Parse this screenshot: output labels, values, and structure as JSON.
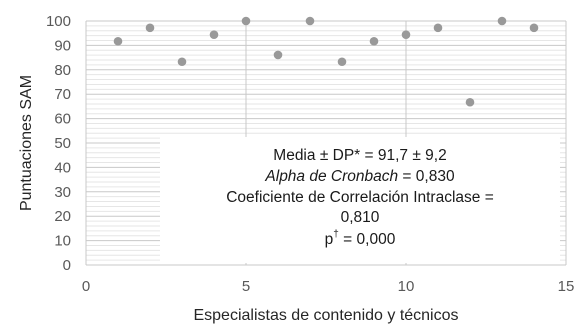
{
  "chart_data": {
    "type": "scatter",
    "xlabel": "Especialistas de contenido y técnicos",
    "ylabel": "Puntuaciones SAM",
    "xlim": [
      0,
      15
    ],
    "ylim": [
      0,
      100
    ],
    "x_ticks": [
      "0",
      "5",
      "10",
      "15"
    ],
    "y_ticks": [
      "0",
      "10",
      "20",
      "30",
      "40",
      "50",
      "60",
      "70",
      "80",
      "90",
      "100"
    ],
    "grid": "on",
    "series": [
      {
        "color": "#999999",
        "points": [
          {
            "x": 1,
            "y": 91.7
          },
          {
            "x": 2,
            "y": 97.2
          },
          {
            "x": 3,
            "y": 83.3
          },
          {
            "x": 4,
            "y": 94.4
          },
          {
            "x": 5,
            "y": 100
          },
          {
            "x": 6,
            "y": 86.1
          },
          {
            "x": 7,
            "y": 100
          },
          {
            "x": 8,
            "y": 83.3
          },
          {
            "x": 9,
            "y": 91.7
          },
          {
            "x": 10,
            "y": 94.4
          },
          {
            "x": 11,
            "y": 97.2
          },
          {
            "x": 12,
            "y": 66.7
          },
          {
            "x": 13,
            "y": 100
          },
          {
            "x": 14,
            "y": 97.2
          }
        ]
      }
    ],
    "annotation": {
      "line1_prefix": "Media ",
      "line1_pm1": "±",
      "line1_mid": " DP* = 91,7 ",
      "line1_pm2": "±",
      "line1_suffix": " 9,2",
      "line2_italic": "Alpha de Cronbach",
      "line2_rest": " = 0,830",
      "line3": "Coeficiente de Correlación Intraclase =",
      "line4": "0,810",
      "line5_p": "p",
      "line5_sup": "†",
      "line5_rest": " = 0,000"
    }
  }
}
